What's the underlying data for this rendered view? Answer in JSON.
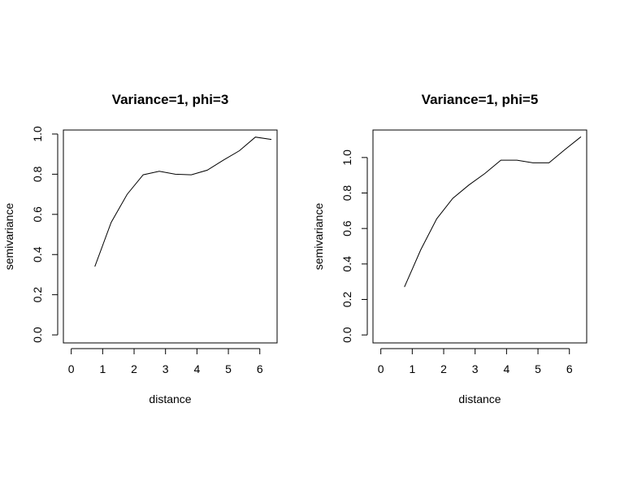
{
  "chart_data": [
    {
      "type": "line",
      "title": "Variance=1, phi=3",
      "xlabel": "distance",
      "ylabel": "semivariance",
      "xlim": [
        -0.25,
        6.55
      ],
      "ylim": [
        -0.04,
        1.02
      ],
      "xticks": [
        "0",
        "1",
        "2",
        "3",
        "4",
        "5",
        "6"
      ],
      "yticks": [
        "0.0",
        "0.2",
        "0.4",
        "0.6",
        "0.8",
        "1.0"
      ],
      "x": [
        0.75,
        1.27,
        1.78,
        2.29,
        2.8,
        3.31,
        3.82,
        4.33,
        4.84,
        5.35,
        5.86,
        6.37
      ],
      "y": [
        0.34,
        0.56,
        0.7,
        0.797,
        0.815,
        0.8,
        0.797,
        0.82,
        0.87,
        0.917,
        0.985,
        0.973
      ]
    },
    {
      "type": "line",
      "title": "Variance=1, phi=5",
      "xlabel": "distance",
      "ylabel": "semivariance",
      "xlim": [
        -0.25,
        6.55
      ],
      "ylim": [
        -0.045,
        1.155
      ],
      "xticks": [
        "0",
        "1",
        "2",
        "3",
        "4",
        "5",
        "6"
      ],
      "yticks": [
        "0.0",
        "0.2",
        "0.4",
        "0.6",
        "0.8",
        "1.0"
      ],
      "x": [
        0.75,
        1.27,
        1.78,
        2.29,
        2.8,
        3.31,
        3.82,
        4.33,
        4.84,
        5.35,
        5.86,
        6.37
      ],
      "y": [
        0.27,
        0.48,
        0.655,
        0.77,
        0.845,
        0.91,
        0.985,
        0.985,
        0.97,
        0.97,
        1.045,
        1.117
      ]
    }
  ]
}
